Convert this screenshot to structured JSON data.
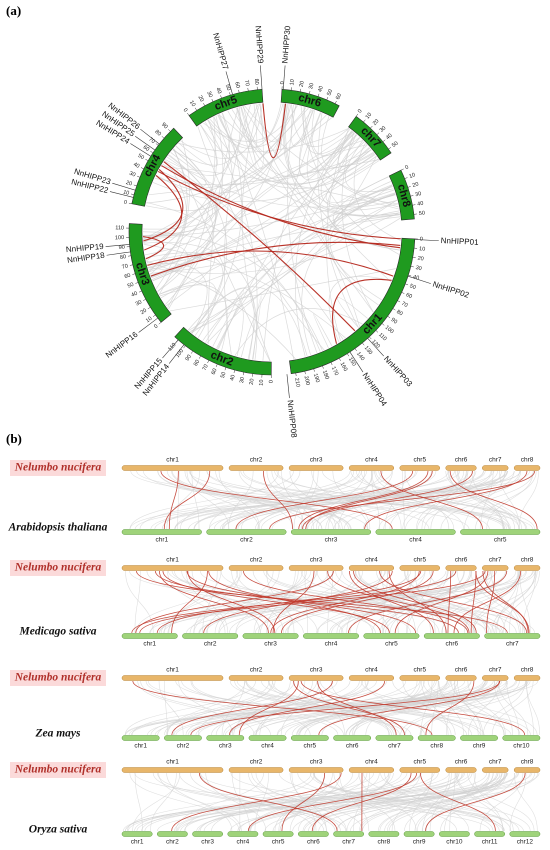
{
  "panel_a": {
    "label": "(a)",
    "chromosomes": [
      {
        "name": "chr6",
        "ticks": [
          0,
          10,
          20,
          30,
          40,
          50,
          60
        ]
      },
      {
        "name": "chr7",
        "ticks": [
          0,
          10,
          20,
          30,
          40,
          50
        ]
      },
      {
        "name": "chr8",
        "ticks": [
          0,
          10,
          20,
          30,
          40,
          50
        ]
      },
      {
        "name": "chr1",
        "ticks": [
          0,
          10,
          20,
          30,
          40,
          50,
          60,
          70,
          80,
          90,
          100,
          110,
          120,
          130,
          140,
          150,
          160,
          170,
          180,
          190,
          200,
          210
        ]
      },
      {
        "name": "chr2",
        "ticks": [
          0,
          10,
          20,
          30,
          40,
          50,
          60,
          70,
          80,
          90,
          100,
          110
        ]
      },
      {
        "name": "chr3",
        "ticks": [
          0,
          10,
          20,
          30,
          40,
          50,
          60,
          70,
          80,
          90,
          100,
          110
        ]
      },
      {
        "name": "chr4",
        "ticks": [
          0,
          10,
          20,
          30,
          40,
          50,
          60,
          70,
          80,
          90
        ]
      },
      {
        "name": "chr5",
        "ticks": [
          0,
          10,
          20,
          30,
          40,
          50,
          60,
          70,
          80
        ]
      }
    ],
    "genes": [
      "NnHIPP30",
      "NnHIPP29",
      "NnHIPP27",
      "NnHIPP26",
      "NnHIPP25",
      "NnHIPP24",
      "NnHIPP23",
      "NnHIPP22",
      "NnHIPP19",
      "NnHIPP18",
      "NnHIPP16",
      "NnHIPP15",
      "NnHIPP14",
      "NnHIPP01",
      "NnHIPP02",
      "NnHIPP03",
      "NnHIPP04",
      "NnHIPP08"
    ]
  },
  "panel_b": {
    "label": "(b)",
    "rows": [
      {
        "top_species": "Nelumbo nucifera",
        "top_chromosomes": [
          "chr1",
          "chr2",
          "chr3",
          "chr4",
          "chr5",
          "chr6",
          "chr7",
          "chr8"
        ],
        "bottom_species": "Arabidopsis thaliana",
        "bottom_chromosomes": [
          "chr1",
          "chr2",
          "chr3",
          "chr4",
          "chr5"
        ]
      },
      {
        "top_species": "Nelumbo nucifera",
        "top_chromosomes": [
          "chr1",
          "chr2",
          "chr3",
          "chr4",
          "chr5",
          "chr6",
          "chr7",
          "chr8"
        ],
        "bottom_species": "Medicago sativa",
        "bottom_chromosomes": [
          "chr1",
          "chr2",
          "chr3",
          "chr4",
          "chr5",
          "chr6",
          "chr7"
        ]
      },
      {
        "top_species": "Nelumbo nucifera",
        "top_chromosomes": [
          "chr1",
          "chr2",
          "chr3",
          "chr4",
          "chr5",
          "chr6",
          "chr7",
          "chr8"
        ],
        "bottom_species": "Zea mays",
        "bottom_chromosomes": [
          "chr1",
          "chr2",
          "chr3",
          "chr4",
          "chr5",
          "chr6",
          "chr7",
          "chr8",
          "chr9",
          "chr10"
        ]
      },
      {
        "top_species": "Nelumbo nucifera",
        "top_chromosomes": [
          "chr1",
          "chr2",
          "chr3",
          "chr4",
          "chr5",
          "chr6",
          "chr7",
          "chr8"
        ],
        "bottom_species": "Oryza sativa",
        "bottom_chromosomes": [
          "chr1",
          "chr2",
          "chr3",
          "chr4",
          "chr5",
          "chr6",
          "chr7",
          "chr8",
          "chr9",
          "chr10",
          "chr11",
          "chr12"
        ]
      }
    ]
  }
}
